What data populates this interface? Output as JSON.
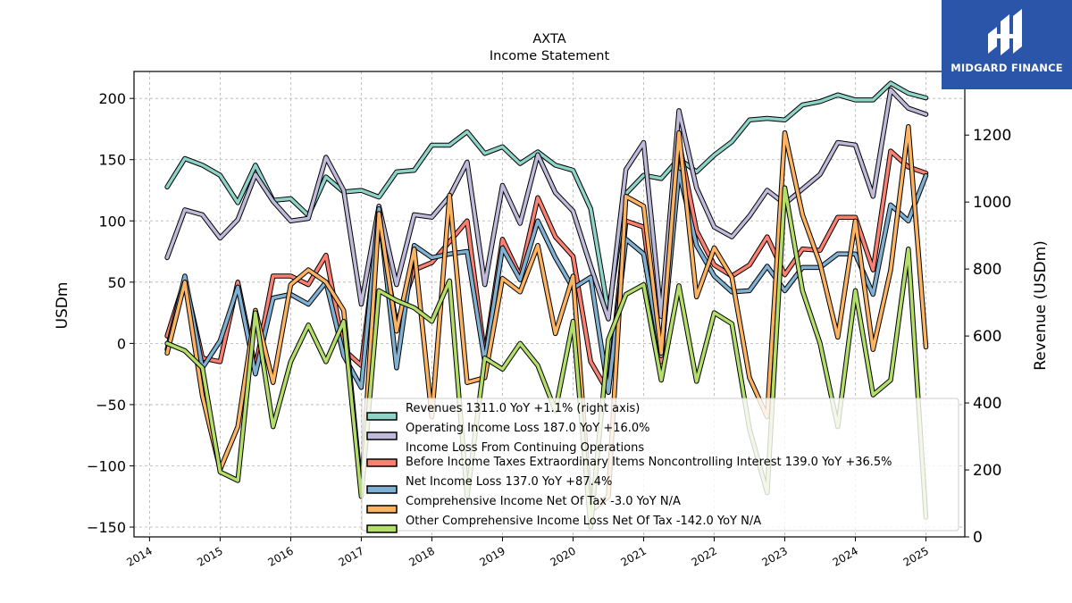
{
  "chart_data": {
    "type": "line",
    "title": "AXTA",
    "subtitle": "Income Statement",
    "ylabel": "USDm",
    "y2label": "Revenue (USDm)",
    "ylim": [
      -158,
      222
    ],
    "y2lim": [
      0,
      1390
    ],
    "yticks": [
      -150,
      -100,
      -50,
      0,
      50,
      100,
      150,
      200
    ],
    "y2ticks": [
      0,
      200,
      400,
      600,
      800,
      1000,
      1200
    ],
    "xlim": [
      2013.78,
      2025.55
    ],
    "xticks": [
      2014,
      2015,
      2016,
      2017,
      2018,
      2019,
      2020,
      2021,
      2022,
      2023,
      2024,
      2025
    ],
    "grid": true,
    "legend_position": "lower-right",
    "x": [
      2014.25,
      2014.5,
      2014.75,
      2015.0,
      2015.25,
      2015.5,
      2015.75,
      2016.0,
      2016.25,
      2016.5,
      2016.75,
      2017.0,
      2017.25,
      2017.5,
      2017.75,
      2018.0,
      2018.25,
      2018.5,
      2018.75,
      2019.0,
      2019.25,
      2019.5,
      2019.75,
      2020.0,
      2020.25,
      2020.5,
      2020.75,
      2021.0,
      2021.25,
      2021.5,
      2021.75,
      2022.0,
      2022.25,
      2022.5,
      2022.75,
      2023.0,
      2023.25,
      2023.5,
      2023.75,
      2024.0,
      2024.25,
      2024.5,
      2024.75,
      2025.0
    ],
    "series": [
      {
        "name": "Revenues",
        "legend": "Revenues  1311.0 YoY +1.1% (right axis)",
        "color": "#8dd3c7",
        "axis": "right",
        "values": [
          1045,
          1130,
          1110,
          1080,
          998,
          1110,
          1005,
          1010,
          960,
          1075,
          1030,
          1035,
          1015,
          1090,
          1095,
          1170,
          1170,
          1210,
          1145,
          1165,
          1115,
          1150,
          1110,
          1095,
          980,
          670,
          1025,
          1080,
          1070,
          1130,
          1090,
          1140,
          1180,
          1245,
          1250,
          1245,
          1290,
          1300,
          1320,
          1305,
          1305,
          1355,
          1325,
          1311
        ]
      },
      {
        "name": "Operating Income Loss",
        "legend": "Operating Income Loss  187.0 YoY +16.0%",
        "color": "#bebada",
        "axis": "left",
        "values": [
          70,
          109,
          105,
          86,
          101,
          138,
          116,
          100,
          102,
          152,
          125,
          32,
          112,
          48,
          105,
          103,
          120,
          148,
          48,
          129,
          98,
          154,
          123,
          108,
          63,
          20,
          142,
          164,
          22,
          190,
          127,
          95,
          87,
          104,
          125,
          114,
          126,
          138,
          164,
          162,
          120,
          207,
          192,
          187
        ]
      },
      {
        "name": "Income Loss From Continuing Operations Before Income Taxes Extraordinary Items Noncontrolling Interest",
        "legend": "Income Loss From Continuing Operations\nBefore Income Taxes Extraordinary Items Noncontrolling Interest  139.0 YoY +36.5%",
        "color": "#fb8072",
        "axis": "left",
        "values": [
          6,
          52,
          -12,
          -15,
          50,
          -20,
          55,
          55,
          48,
          72,
          -5,
          -18,
          100,
          15,
          60,
          66,
          83,
          100,
          -10,
          85,
          55,
          119,
          87,
          71,
          -15,
          -40,
          100,
          95,
          -15,
          165,
          92,
          64,
          55,
          64,
          87,
          56,
          77,
          76,
          103,
          103,
          60,
          157,
          144,
          139
        ]
      },
      {
        "name": "Net Income Loss",
        "legend": "Net Income Loss  137.0 YoY +87.4%",
        "color": "#80b1d3",
        "axis": "left",
        "values": [
          -5,
          55,
          -20,
          2,
          46,
          -25,
          37,
          40,
          32,
          50,
          -10,
          -36,
          110,
          -20,
          80,
          70,
          73,
          75,
          -15,
          78,
          52,
          100,
          70,
          45,
          54,
          -40,
          85,
          73,
          -10,
          140,
          80,
          55,
          42,
          43,
          63,
          43,
          62,
          62,
          73,
          73,
          40,
          113,
          100,
          137
        ]
      },
      {
        "name": "Comprehensive Income Net Of Tax",
        "legend": "Comprehensive Income Net Of Tax  -3.0 YoY N/A",
        "color": "#fdb462",
        "axis": "left",
        "values": [
          -8,
          50,
          -43,
          -103,
          -68,
          27,
          -32,
          48,
          60,
          50,
          27,
          -120,
          106,
          10,
          77,
          -60,
          121,
          -32,
          -28,
          53,
          42,
          80,
          8,
          55,
          -137,
          -125,
          120,
          112,
          -8,
          172,
          38,
          78,
          54,
          -28,
          -60,
          172,
          105,
          65,
          5,
          100,
          -5,
          60,
          177,
          -3
        ]
      },
      {
        "name": "Other Comprehensive Income Loss Net Of Tax",
        "legend": "Other Comprehensive Income Loss Net Of Tax  -142.0 YoY N/A",
        "color": "#b3de69",
        "axis": "left",
        "values": [
          0,
          -6,
          -20,
          -105,
          -112,
          25,
          -68,
          -15,
          15,
          -15,
          18,
          -125,
          43,
          35,
          29,
          18,
          51,
          -125,
          -12,
          -21,
          0,
          -18,
          -55,
          18,
          -150,
          3,
          40,
          48,
          -30,
          47,
          -31,
          25,
          16,
          -70,
          -122,
          127,
          43,
          0,
          -68,
          43,
          -42,
          -30,
          77,
          -142
        ]
      }
    ]
  },
  "logo": {
    "text": "MIDGARD FINANCE"
  }
}
